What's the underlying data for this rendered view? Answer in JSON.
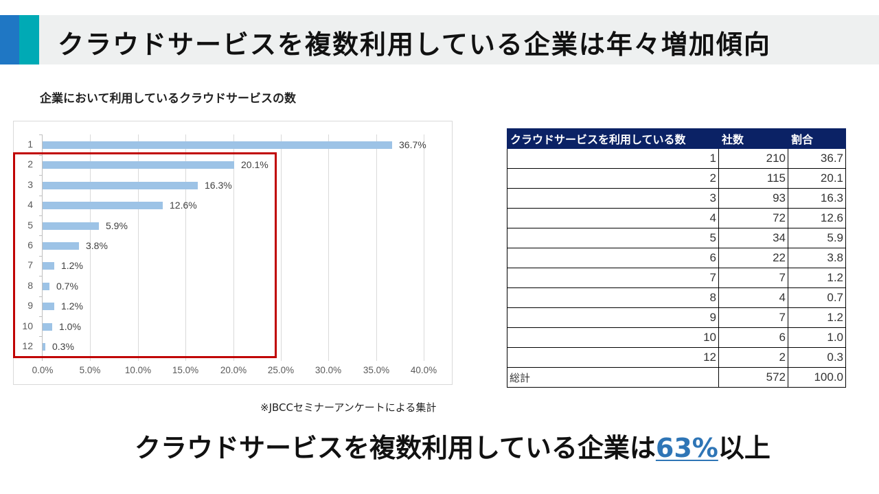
{
  "slide": {
    "title": "クラウドサービスを複数利用している企業は年々増加傾向",
    "accent_colors": {
      "blue": "#1f77c4",
      "teal": "#00aab5",
      "title_bg": "#eef0f0"
    },
    "chart_title": "企業において利用しているクラウドサービスの数",
    "source_note": "※JBCCセミナーアンケートによる集計",
    "conclusion": {
      "prefix": "クラウドサービスを複数利用している企業は",
      "highlight": "63%",
      "suffix": "以上",
      "highlight_color": "#2e75b6"
    }
  },
  "chart_data": {
    "type": "bar",
    "orientation": "horizontal",
    "title": "企業において利用しているクラウドサービスの数",
    "categories": [
      "1",
      "2",
      "3",
      "4",
      "5",
      "6",
      "7",
      "8",
      "9",
      "10",
      "12"
    ],
    "values": [
      36.7,
      20.1,
      16.3,
      12.6,
      5.9,
      3.8,
      1.2,
      0.7,
      1.2,
      1.0,
      0.3
    ],
    "data_labels": [
      "36.7%",
      "20.1%",
      "16.3%",
      "12.6%",
      "5.9%",
      "3.8%",
      "1.2%",
      "0.7%",
      "1.2%",
      "1.0%",
      "0.3%"
    ],
    "x_ticks": [
      "0.0%",
      "5.0%",
      "10.0%",
      "15.0%",
      "20.0%",
      "25.0%",
      "30.0%",
      "35.0%",
      "40.0%"
    ],
    "xlabel": "",
    "ylabel": "",
    "xlim": [
      0,
      40
    ],
    "grid": "vertical",
    "legend": "none",
    "bar_color": "#9dc3e6",
    "annotation": "red box highlighting categories 2 through 12"
  },
  "table": {
    "headers": [
      "クラウドサービスを利用している数",
      "社数",
      "割合"
    ],
    "rows": [
      [
        "1",
        "210",
        "36.7"
      ],
      [
        "2",
        "115",
        "20.1"
      ],
      [
        "3",
        "93",
        "16.3"
      ],
      [
        "4",
        "72",
        "12.6"
      ],
      [
        "5",
        "34",
        "5.9"
      ],
      [
        "6",
        "22",
        "3.8"
      ],
      [
        "7",
        "7",
        "1.2"
      ],
      [
        "8",
        "4",
        "0.7"
      ],
      [
        "9",
        "7",
        "1.2"
      ],
      [
        "10",
        "6",
        "1.0"
      ],
      [
        "12",
        "2",
        "0.3"
      ]
    ],
    "total": [
      "総計",
      "572",
      "100.0"
    ],
    "header_bg": "#0b2265"
  }
}
